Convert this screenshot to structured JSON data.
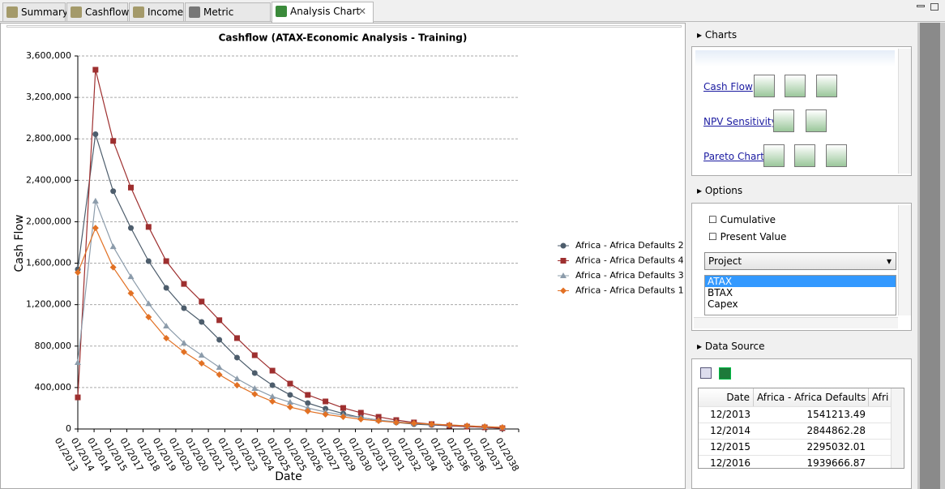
{
  "tabs": [
    "Summary",
    "Cashflow",
    "Income",
    "Metric Analysis",
    "Analysis Chart"
  ],
  "chart_data": {
    "type": "line",
    "title": "Cashflow (ATAX-Economic Analysis - Training)",
    "xlabel": "Date",
    "ylabel": "Cash Flow",
    "x": [
      2013.92,
      2014.92,
      2015.92,
      2016.92,
      2017.92,
      2018.92,
      2019.92,
      2020.92,
      2021.92,
      2022.92,
      2023.92,
      2024.92,
      2025.92,
      2026.92,
      2027.92,
      2028.92,
      2029.92,
      2030.92,
      2031.92,
      2032.92,
      2033.92,
      2034.92,
      2035.92,
      2036.92,
      2037.92
    ],
    "xlim": [
      2013.92,
      2038.84
    ],
    "xticks": [
      {
        "value": 2013.92,
        "label": "01/2013"
      },
      {
        "value": 2014.84,
        "label": "01/2014"
      },
      {
        "value": 2015.77,
        "label": "01/2014"
      },
      {
        "value": 2016.69,
        "label": "01/2015"
      },
      {
        "value": 2017.61,
        "label": "01/2017"
      },
      {
        "value": 2018.54,
        "label": "01/2018"
      },
      {
        "value": 2019.46,
        "label": "01/2019"
      },
      {
        "value": 2020.38,
        "label": "01/2020"
      },
      {
        "value": 2021.3,
        "label": "01/2020"
      },
      {
        "value": 2022.23,
        "label": "01/2021"
      },
      {
        "value": 2023.15,
        "label": "01/2021"
      },
      {
        "value": 2024.07,
        "label": "01/2023"
      },
      {
        "value": 2025.0,
        "label": "01/2024"
      },
      {
        "value": 2025.92,
        "label": "01/2025"
      },
      {
        "value": 2026.84,
        "label": "01/2025"
      },
      {
        "value": 2027.76,
        "label": "01/2026"
      },
      {
        "value": 2028.69,
        "label": "01/2027"
      },
      {
        "value": 2029.61,
        "label": "01/2029"
      },
      {
        "value": 2030.53,
        "label": "01/2030"
      },
      {
        "value": 2031.46,
        "label": "01/2031"
      },
      {
        "value": 2032.38,
        "label": "01/2031"
      },
      {
        "value": 2033.3,
        "label": "01/2032"
      },
      {
        "value": 2034.22,
        "label": "01/2034"
      },
      {
        "value": 2035.15,
        "label": "01/2035"
      },
      {
        "value": 2036.07,
        "label": "01/2036"
      },
      {
        "value": 2036.99,
        "label": "01/2036"
      },
      {
        "value": 2037.92,
        "label": "01/2037"
      },
      {
        "value": 2038.84,
        "label": "01/2038"
      }
    ],
    "ylim": [
      0,
      3600000
    ],
    "yticks": [
      0,
      {
        "value": 400000,
        "label": "400,000"
      },
      {
        "value": 800000,
        "label": "800,000"
      },
      {
        "value": 1200000,
        "label": "1,200,000"
      },
      {
        "value": 1600000,
        "label": "1,600,000"
      },
      {
        "value": 2000000,
        "label": "2,000,000"
      },
      {
        "value": 2400000,
        "label": "2,400,000"
      },
      {
        "value": 2800000,
        "label": "2,800,000"
      },
      {
        "value": 3200000,
        "label": "3,200,000"
      },
      {
        "value": 3600000,
        "label": "3,600,000"
      }
    ],
    "grid": true,
    "legend": "right",
    "series": [
      {
        "name": "Africa - Africa Defaults 2",
        "color": "#4d5d6c",
        "marker": "circle",
        "values": [
          1541213.49,
          2844862.28,
          2295032.01,
          1939666.87,
          1620000,
          1362000,
          1166000,
          1033000,
          861000,
          689000,
          540000,
          423000,
          329000,
          250000,
          196000,
          149000,
          110000,
          86000,
          63000,
          47000,
          39000,
          31000,
          23000,
          16000,
          8000
        ]
      },
      {
        "name": "Africa - Africa Defaults 4",
        "color": "#9e2f2f",
        "marker": "square",
        "values": [
          305000,
          3467000,
          2780000,
          2330000,
          1950000,
          1620000,
          1400000,
          1230000,
          1050000,
          877000,
          712000,
          563000,
          438000,
          329000,
          266000,
          203000,
          157000,
          117000,
          86000,
          63000,
          47000,
          31000,
          23000,
          16000,
          8000
        ]
      },
      {
        "name": "Africa - Africa Defaults 3",
        "color": "#8c9cab",
        "marker": "triangle",
        "values": [
          642000,
          2200000,
          1760000,
          1470000,
          1210000,
          994000,
          830000,
          712000,
          595000,
          485000,
          391000,
          313000,
          258000,
          203000,
          164000,
          133000,
          110000,
          86000,
          70000,
          55000,
          47000,
          39000,
          31000,
          23000,
          16000
        ]
      },
      {
        "name": "Africa - Africa Defaults 1",
        "color": "#e27124",
        "marker": "diamond",
        "values": [
          1510000,
          1940000,
          1560000,
          1310000,
          1080000,
          877000,
          743000,
          634000,
          524000,
          423000,
          337000,
          266000,
          211000,
          172000,
          141000,
          117000,
          94000,
          78000,
          63000,
          55000,
          47000,
          39000,
          31000,
          23000,
          16000
        ]
      }
    ]
  },
  "panel": {
    "charts": {
      "title": "Charts",
      "items": [
        "Cash Flow",
        "NPV Sensitivity",
        "Pareto Chart"
      ]
    },
    "options": {
      "title": "Options",
      "checkboxes": [
        "Cumulative",
        "Present Value"
      ],
      "dropdown": "Project",
      "list": [
        "ATAX",
        "BTAX",
        "Capex"
      ]
    },
    "data_source": {
      "title": "Data Source",
      "columns": [
        "Date",
        "Africa - Africa Defaults 2",
        "Afri"
      ],
      "rows": [
        [
          "12/2013",
          "1541213.49"
        ],
        [
          "12/2014",
          "2844862.28"
        ],
        [
          "12/2015",
          "2295032.01"
        ],
        [
          "12/2016",
          "1939666.87"
        ]
      ]
    }
  }
}
